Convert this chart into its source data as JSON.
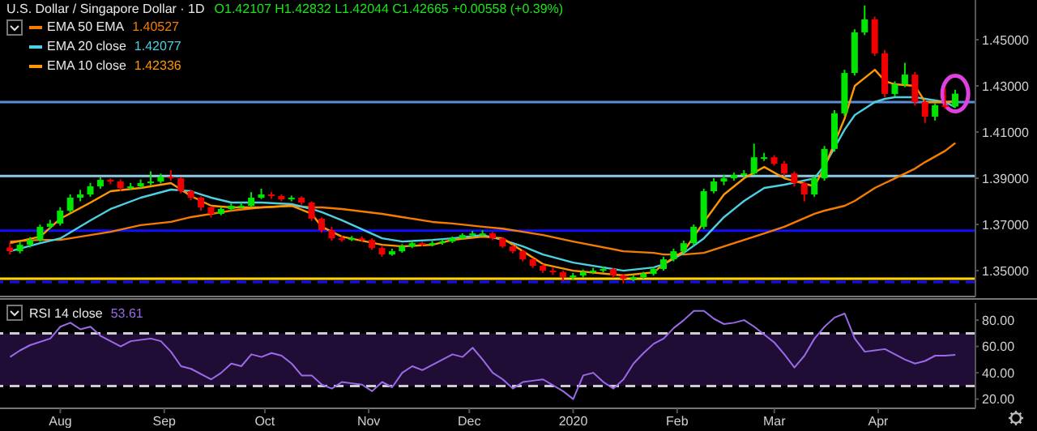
{
  "chart_data": [
    {
      "type": "candlestick",
      "title": "U.S. Dollar / Singapore Dollar · 1D",
      "subtitle": "O1.42107 H1.42832 L1.42044 C1.42665 +0.00558 (+0.39%)",
      "x": [
        "2019-07-17",
        "2019-07-20",
        "2019-07-23",
        "2019-07-26",
        "2019-07-29",
        "2019-08-01",
        "2019-08-04",
        "2019-08-07",
        "2019-08-10",
        "2019-08-13",
        "2019-08-16",
        "2019-08-19",
        "2019-08-22",
        "2019-08-25",
        "2019-08-28",
        "2019-08-31",
        "2019-09-03",
        "2019-09-06",
        "2019-09-09",
        "2019-09-12",
        "2019-09-15",
        "2019-09-18",
        "2019-09-21",
        "2019-09-24",
        "2019-09-27",
        "2019-09-30",
        "2019-10-03",
        "2019-10-06",
        "2019-10-09",
        "2019-10-12",
        "2019-10-15",
        "2019-10-18",
        "2019-10-21",
        "2019-10-24",
        "2019-10-27",
        "2019-10-30",
        "2019-11-02",
        "2019-11-05",
        "2019-11-08",
        "2019-11-11",
        "2019-11-14",
        "2019-11-17",
        "2019-11-20",
        "2019-11-23",
        "2019-11-26",
        "2019-11-29",
        "2019-12-02",
        "2019-12-05",
        "2019-12-08",
        "2019-12-11",
        "2019-12-14",
        "2019-12-17",
        "2019-12-20",
        "2019-12-23",
        "2019-12-26",
        "2019-12-29",
        "2020-01-01",
        "2020-01-04",
        "2020-01-07",
        "2020-01-10",
        "2020-01-13",
        "2020-01-16",
        "2020-01-19",
        "2020-01-22",
        "2020-01-25",
        "2020-01-28",
        "2020-01-31",
        "2020-02-03",
        "2020-02-06",
        "2020-02-09",
        "2020-02-12",
        "2020-02-15",
        "2020-02-18",
        "2020-02-21",
        "2020-02-24",
        "2020-02-27",
        "2020-03-01",
        "2020-03-04",
        "2020-03-07",
        "2020-03-10",
        "2020-03-13",
        "2020-03-16",
        "2020-03-19",
        "2020-03-22",
        "2020-03-25",
        "2020-03-28",
        "2020-03-31",
        "2020-04-03",
        "2020-04-06",
        "2020-04-09",
        "2020-04-12",
        "2020-04-15",
        "2020-04-18",
        "2020-04-21",
        "2020-04-24"
      ],
      "ohlc": [
        [
          1.36,
          1.362,
          1.357,
          1.3584
        ],
        [
          1.3584,
          1.3625,
          1.3575,
          1.3612
        ],
        [
          1.3612,
          1.3645,
          1.36,
          1.3633
        ],
        [
          1.3633,
          1.37,
          1.3625,
          1.369
        ],
        [
          1.369,
          1.372,
          1.368,
          1.3704
        ],
        [
          1.3704,
          1.3775,
          1.3695,
          1.376
        ],
        [
          1.376,
          1.383,
          1.375,
          1.3816
        ],
        [
          1.3816,
          1.385,
          1.38,
          1.383
        ],
        [
          1.383,
          1.388,
          1.382,
          1.3865
        ],
        [
          1.3865,
          1.3905,
          1.3855,
          1.3893
        ],
        [
          1.3893,
          1.39,
          1.3875,
          1.3886
        ],
        [
          1.3886,
          1.3895,
          1.3845,
          1.3858
        ],
        [
          1.3858,
          1.388,
          1.385,
          1.3865
        ],
        [
          1.3865,
          1.3895,
          1.3858,
          1.3879
        ],
        [
          1.3879,
          1.393,
          1.387,
          1.3886
        ],
        [
          1.3886,
          1.392,
          1.3878,
          1.3907
        ],
        [
          1.3907,
          1.3935,
          1.389,
          1.39
        ],
        [
          1.39,
          1.3905,
          1.3835,
          1.3844
        ],
        [
          1.3844,
          1.385,
          1.3805,
          1.3816
        ],
        [
          1.3816,
          1.3822,
          1.376,
          1.3774
        ],
        [
          1.3774,
          1.378,
          1.373,
          1.3746
        ],
        [
          1.3746,
          1.3775,
          1.374,
          1.3767
        ],
        [
          1.3767,
          1.379,
          1.376,
          1.3781
        ],
        [
          1.3781,
          1.3795,
          1.377,
          1.3781
        ],
        [
          1.3781,
          1.384,
          1.3775,
          1.3816
        ],
        [
          1.3816,
          1.3855,
          1.381,
          1.383
        ],
        [
          1.383,
          1.384,
          1.3812,
          1.3823
        ],
        [
          1.3823,
          1.383,
          1.38,
          1.3809
        ],
        [
          1.3809,
          1.3825,
          1.38,
          1.3816
        ],
        [
          1.3816,
          1.3822,
          1.3785,
          1.3795
        ],
        [
          1.3795,
          1.38,
          1.3715,
          1.3725
        ],
        [
          1.3725,
          1.373,
          1.3665,
          1.3675
        ],
        [
          1.3675,
          1.369,
          1.363,
          1.364
        ],
        [
          1.364,
          1.365,
          1.3625,
          1.3633
        ],
        [
          1.3633,
          1.365,
          1.3628,
          1.364
        ],
        [
          1.364,
          1.3648,
          1.3625,
          1.3633
        ],
        [
          1.3633,
          1.364,
          1.359,
          1.3598
        ],
        [
          1.3598,
          1.3605,
          1.356,
          1.357
        ],
        [
          1.357,
          1.3595,
          1.3565,
          1.3584
        ],
        [
          1.3584,
          1.3615,
          1.3578,
          1.3605
        ],
        [
          1.3605,
          1.3628,
          1.3598,
          1.3619
        ],
        [
          1.3619,
          1.3625,
          1.3605,
          1.3612
        ],
        [
          1.3612,
          1.3628,
          1.3605,
          1.3619
        ],
        [
          1.3619,
          1.3635,
          1.3612,
          1.3626
        ],
        [
          1.3626,
          1.3648,
          1.362,
          1.364
        ],
        [
          1.364,
          1.3662,
          1.3635,
          1.3654
        ],
        [
          1.3654,
          1.3672,
          1.3648,
          1.3661
        ],
        [
          1.3661,
          1.3675,
          1.365,
          1.3661
        ],
        [
          1.3661,
          1.3668,
          1.3632,
          1.364
        ],
        [
          1.364,
          1.3645,
          1.3598,
          1.3605
        ],
        [
          1.3605,
          1.3612,
          1.3575,
          1.3584
        ],
        [
          1.3584,
          1.359,
          1.354,
          1.3549
        ],
        [
          1.3549,
          1.3555,
          1.3512,
          1.3521
        ],
        [
          1.3521,
          1.3528,
          1.349,
          1.35
        ],
        [
          1.35,
          1.3512,
          1.3482,
          1.3493
        ],
        [
          1.3493,
          1.35,
          1.3455,
          1.3472
        ],
        [
          1.3472,
          1.349,
          1.3462,
          1.3479
        ],
        [
          1.3479,
          1.3505,
          1.347,
          1.3493
        ],
        [
          1.3493,
          1.3512,
          1.3485,
          1.35
        ],
        [
          1.35,
          1.3518,
          1.3492,
          1.3507
        ],
        [
          1.3507,
          1.3512,
          1.347,
          1.3479
        ],
        [
          1.3479,
          1.3485,
          1.3445,
          1.3465
        ],
        [
          1.3465,
          1.3482,
          1.3455,
          1.3472
        ],
        [
          1.3472,
          1.3495,
          1.3465,
          1.3486
        ],
        [
          1.3486,
          1.3515,
          1.3478,
          1.3507
        ],
        [
          1.3507,
          1.356,
          1.35,
          1.3549
        ],
        [
          1.3549,
          1.3595,
          1.354,
          1.3584
        ],
        [
          1.3584,
          1.363,
          1.3575,
          1.3619
        ],
        [
          1.3619,
          1.37,
          1.361,
          1.369
        ],
        [
          1.369,
          1.3855,
          1.368,
          1.3844
        ],
        [
          1.3844,
          1.39,
          1.3835,
          1.3886
        ],
        [
          1.3886,
          1.3915,
          1.387,
          1.39
        ],
        [
          1.39,
          1.3925,
          1.389,
          1.3914
        ],
        [
          1.3914,
          1.3935,
          1.3905,
          1.3921
        ],
        [
          1.3921,
          1.405,
          1.3915,
          1.3991
        ],
        [
          1.3991,
          1.401,
          1.3975,
          1.3991
        ],
        [
          1.3991,
          1.4,
          1.3955,
          1.3963
        ],
        [
          1.3963,
          1.3975,
          1.391,
          1.3921
        ],
        [
          1.3921,
          1.393,
          1.3865,
          1.3879
        ],
        [
          1.3879,
          1.3885,
          1.38,
          1.383
        ],
        [
          1.383,
          1.391,
          1.382,
          1.39
        ],
        [
          1.39,
          1.404,
          1.389,
          1.4027
        ],
        [
          1.4027,
          1.4195,
          1.4015,
          1.4181
        ],
        [
          1.4181,
          1.437,
          1.417,
          1.4356
        ],
        [
          1.4356,
          1.4545,
          1.4345,
          1.4532
        ],
        [
          1.4532,
          1.4648,
          1.452,
          1.4588
        ],
        [
          1.4588,
          1.46,
          1.443,
          1.4441
        ],
        [
          1.4441,
          1.4455,
          1.425,
          1.4265
        ],
        [
          1.4265,
          1.432,
          1.4255,
          1.4307
        ],
        [
          1.4307,
          1.44,
          1.4295,
          1.4349
        ],
        [
          1.4349,
          1.436,
          1.4215,
          1.423
        ],
        [
          1.423,
          1.424,
          1.414,
          1.4167
        ],
        [
          1.4167,
          1.4225,
          1.415,
          1.4216
        ],
        [
          1.4216,
          1.429,
          1.42,
          1.4211
        ],
        [
          1.42107,
          1.42832,
          1.42044,
          1.42665
        ]
      ],
      "colors": [
        "#f00000",
        "#00e600",
        "#00e600",
        "#00e600",
        "#00e600",
        "#00e600",
        "#00e600",
        "#00e600",
        "#00e600",
        "#00e600",
        "#f00000",
        "#f00000",
        "#00e600",
        "#00e600",
        "#00e600",
        "#00e600",
        "#f00000",
        "#f00000",
        "#f00000",
        "#f00000",
        "#f00000",
        "#00e600",
        "#00e600",
        "#00e600",
        "#00e600",
        "#00e600",
        "#f00000",
        "#f00000",
        "#00e600",
        "#f00000",
        "#f00000",
        "#f00000",
        "#f00000",
        "#f00000",
        "#00e600",
        "#f00000",
        "#f00000",
        "#f00000",
        "#00e600",
        "#00e600",
        "#00e600",
        "#f00000",
        "#00e600",
        "#00e600",
        "#00e600",
        "#00e600",
        "#00e600",
        "#00e600",
        "#f00000",
        "#f00000",
        "#f00000",
        "#f00000",
        "#f00000",
        "#f00000",
        "#f00000",
        "#f00000",
        "#00e600",
        "#00e600",
        "#00e600",
        "#00e600",
        "#f00000",
        "#f00000",
        "#00e600",
        "#00e600",
        "#00e600",
        "#00e600",
        "#00e600",
        "#00e600",
        "#00e600",
        "#00e600",
        "#00e600",
        "#00e600",
        "#00e600",
        "#00e600",
        "#00e600",
        "#00e600",
        "#f00000",
        "#f00000",
        "#f00000",
        "#f00000",
        "#00e600",
        "#00e600",
        "#00e600",
        "#00e600",
        "#00e600",
        "#00e600",
        "#f00000",
        "#f00000",
        "#00e600",
        "#00e600",
        "#f00000",
        "#f00000",
        "#00e600",
        "#f00000",
        "#00e600"
      ],
      "series": [
        {
          "type": "line",
          "name": "EMA 50 EMA",
          "color": "#f57c00",
          "x": [
            "2019-07-17",
            "2019-07-26",
            "2019-08-01",
            "2019-08-10",
            "2019-08-16",
            "2019-08-25",
            "2019-09-03",
            "2019-09-09",
            "2019-09-15",
            "2019-09-21",
            "2019-09-30",
            "2019-10-09",
            "2019-10-15",
            "2019-10-18",
            "2019-10-24",
            "2019-11-05",
            "2019-11-11",
            "2019-11-20",
            "2019-11-26",
            "2019-12-05",
            "2019-12-11",
            "2019-12-17",
            "2019-12-23",
            "2020-01-01",
            "2020-01-16",
            "2020-01-25",
            "2020-01-28",
            "2020-02-03",
            "2020-02-09",
            "2020-02-15",
            "2020-02-21",
            "2020-02-27",
            "2020-03-04",
            "2020-03-13",
            "2020-03-16",
            "2020-03-22",
            "2020-03-25",
            "2020-03-31",
            "2020-04-03",
            "2020-04-06",
            "2020-04-12",
            "2020-04-15",
            "2020-04-21",
            "2020-04-24"
          ],
          "values": [
            1.3626,
            1.3633,
            1.3633,
            1.3654,
            1.3668,
            1.3697,
            1.3711,
            1.3732,
            1.3746,
            1.376,
            1.3774,
            1.3781,
            1.3774,
            1.3774,
            1.3767,
            1.3746,
            1.3732,
            1.3711,
            1.3704,
            1.369,
            1.3682,
            1.3668,
            1.3654,
            1.3626,
            1.3584,
            1.3577,
            1.357,
            1.357,
            1.3577,
            1.3605,
            1.3633,
            1.3661,
            1.369,
            1.3746,
            1.376,
            1.3781,
            1.3802,
            1.3858,
            1.3879,
            1.39,
            1.3942,
            1.397,
            1.4019,
            1.40527
          ]
        },
        {
          "type": "line",
          "name": "EMA 20 close",
          "color": "#4dd0e1",
          "x": [
            "2019-07-17",
            "2019-07-26",
            "2019-08-01",
            "2019-08-10",
            "2019-08-16",
            "2019-08-25",
            "2019-09-03",
            "2019-09-09",
            "2019-09-15",
            "2019-09-21",
            "2019-09-30",
            "2019-10-09",
            "2019-10-15",
            "2019-10-18",
            "2019-10-24",
            "2019-11-05",
            "2019-11-11",
            "2019-11-20",
            "2019-11-26",
            "2019-12-05",
            "2019-12-11",
            "2019-12-17",
            "2019-12-23",
            "2020-01-01",
            "2020-01-16",
            "2020-01-25",
            "2020-01-28",
            "2020-02-03",
            "2020-02-09",
            "2020-02-15",
            "2020-02-21",
            "2020-02-27",
            "2020-03-04",
            "2020-03-13",
            "2020-03-16",
            "2020-03-22",
            "2020-03-25",
            "2020-03-31",
            "2020-04-03",
            "2020-04-06",
            "2020-04-12",
            "2020-04-15",
            "2020-04-21",
            "2020-04-24"
          ],
          "values": [
            1.3584,
            1.3619,
            1.364,
            1.3718,
            1.3767,
            1.3816,
            1.3851,
            1.3844,
            1.3816,
            1.3795,
            1.3795,
            1.3788,
            1.3767,
            1.3753,
            1.3718,
            1.364,
            1.3626,
            1.3633,
            1.364,
            1.3654,
            1.3633,
            1.3605,
            1.357,
            1.3535,
            1.35,
            1.3514,
            1.3528,
            1.3577,
            1.364,
            1.3732,
            1.3802,
            1.3858,
            1.3872,
            1.39,
            1.3956,
            1.4111,
            1.4174,
            1.423,
            1.4244,
            1.4251,
            1.4251,
            1.4244,
            1.423,
            1.42077
          ]
        },
        {
          "type": "line",
          "name": "EMA 10 close",
          "color": "#ff9800",
          "x": [
            "2019-07-17",
            "2019-07-26",
            "2019-08-01",
            "2019-08-10",
            "2019-08-16",
            "2019-08-25",
            "2019-09-03",
            "2019-09-09",
            "2019-09-15",
            "2019-09-21",
            "2019-09-30",
            "2019-10-09",
            "2019-10-15",
            "2019-10-18",
            "2019-10-24",
            "2019-11-05",
            "2019-11-11",
            "2019-11-20",
            "2019-11-26",
            "2019-12-05",
            "2019-12-11",
            "2019-12-17",
            "2019-12-23",
            "2020-01-01",
            "2020-01-16",
            "2020-01-25",
            "2020-01-28",
            "2020-02-03",
            "2020-02-09",
            "2020-02-15",
            "2020-02-21",
            "2020-02-27",
            "2020-03-04",
            "2020-03-13",
            "2020-03-16",
            "2020-03-22",
            "2020-03-25",
            "2020-03-31",
            "2020-04-03",
            "2020-04-06",
            "2020-04-12",
            "2020-04-15",
            "2020-04-21",
            "2020-04-24"
          ],
          "values": [
            1.3619,
            1.3647,
            1.3725,
            1.3795,
            1.3844,
            1.3858,
            1.3879,
            1.3823,
            1.3781,
            1.3774,
            1.3774,
            1.3781,
            1.3746,
            1.369,
            1.3647,
            1.3612,
            1.3605,
            1.3612,
            1.3633,
            1.3647,
            1.364,
            1.3584,
            1.3528,
            1.35,
            1.3479,
            1.3493,
            1.3528,
            1.3584,
            1.3711,
            1.383,
            1.39,
            1.3949,
            1.39,
            1.3865,
            1.3949,
            1.416,
            1.43,
            1.437,
            1.4321,
            1.4307,
            1.43,
            1.423,
            1.423,
            1.42336
          ]
        }
      ],
      "annotations": [
        "1.40527",
        "1.42077",
        "1.42336"
      ],
      "xlim": [
        "2019-07-14",
        "2020-04-30"
      ],
      "ylim": [
        1.3388,
        1.4672
      ],
      "yticks": [
        {
          "value": 1.35,
          "label": "1.35000"
        },
        {
          "value": 1.37,
          "label": "1.37000"
        },
        {
          "value": 1.39,
          "label": "1.39000"
        },
        {
          "value": 1.41,
          "label": "1.41000"
        },
        {
          "value": 1.43,
          "label": "1.43000"
        },
        {
          "value": 1.45,
          "label": "1.45000"
        }
      ],
      "ref_lines": [
        {
          "axis": "y",
          "value": 1.423,
          "color": "#5b8fd9",
          "line_style": "solid"
        },
        {
          "axis": "y",
          "value": 1.391,
          "color": "#8ecae6",
          "line_style": "solid"
        },
        {
          "axis": "y",
          "value": 1.3673,
          "color": "#1010ff",
          "line_style": "solid"
        },
        {
          "axis": "y",
          "value": 1.3465,
          "color": "#ffd400",
          "line_style": "solid"
        },
        {
          "axis": "y",
          "value": 1.3451,
          "color": "#1010ff",
          "line_style": "dashed"
        }
      ],
      "legend": "top left",
      "tick_labels": "y"
    },
    {
      "type": "line",
      "series": [
        {
          "name": "RSI 14 close",
          "color": "#9b6ae8",
          "x": [
            "2019-07-17",
            "2019-07-20",
            "2019-07-23",
            "2019-07-29",
            "2019-08-01",
            "2019-08-04",
            "2019-08-07",
            "2019-08-10",
            "2019-08-13",
            "2019-08-16",
            "2019-08-19",
            "2019-08-22",
            "2019-08-28",
            "2019-08-31",
            "2019-09-03",
            "2019-09-06",
            "2019-09-09",
            "2019-09-15",
            "2019-09-18",
            "2019-09-21",
            "2019-09-24",
            "2019-09-27",
            "2019-09-30",
            "2019-10-03",
            "2019-10-06",
            "2019-10-09",
            "2019-10-12",
            "2019-10-15",
            "2019-10-18",
            "2019-10-21",
            "2019-10-24",
            "2019-10-27",
            "2019-10-30",
            "2019-11-02",
            "2019-11-05",
            "2019-11-08",
            "2019-11-11",
            "2019-11-14",
            "2019-11-17",
            "2019-11-23",
            "2019-11-26",
            "2019-11-29",
            "2019-12-02",
            "2019-12-05",
            "2019-12-08",
            "2019-12-11",
            "2019-12-14",
            "2019-12-17",
            "2019-12-20",
            "2019-12-23",
            "2019-12-29",
            "2020-01-01",
            "2020-01-04",
            "2020-01-07",
            "2020-01-10",
            "2020-01-13",
            "2020-01-16",
            "2020-01-19",
            "2020-01-22",
            "2020-01-25",
            "2020-01-28",
            "2020-01-31",
            "2020-02-03",
            "2020-02-06",
            "2020-02-09",
            "2020-02-12",
            "2020-02-15",
            "2020-02-18",
            "2020-02-21",
            "2020-02-24",
            "2020-02-27",
            "2020-03-01",
            "2020-03-04",
            "2020-03-07",
            "2020-03-10",
            "2020-03-13",
            "2020-03-16",
            "2020-03-19",
            "2020-03-22",
            "2020-03-25",
            "2020-03-28",
            "2020-03-31",
            "2020-04-03",
            "2020-04-06",
            "2020-04-09",
            "2020-04-12",
            "2020-04-15",
            "2020-04-18",
            "2020-04-21",
            "2020-04-24"
          ],
          "values": [
            52,
            57,
            61,
            66,
            75,
            78,
            73,
            75,
            68,
            64,
            60,
            64,
            66,
            64,
            56,
            45,
            43,
            35,
            40,
            47,
            45,
            54,
            52,
            55,
            53,
            47,
            38,
            38,
            31,
            28,
            33,
            32,
            31,
            26,
            33,
            29,
            40,
            45,
            42,
            50,
            54,
            52,
            59,
            50,
            40,
            35,
            28,
            33,
            34,
            35,
            26,
            20,
            38,
            40,
            33,
            28,
            35,
            47,
            55,
            62,
            66,
            74,
            80,
            87,
            87,
            81,
            77,
            78,
            80,
            75,
            69,
            63,
            54,
            44,
            53,
            66,
            75,
            82,
            85,
            66,
            56,
            57,
            58,
            54,
            50,
            47,
            49,
            53,
            53,
            53.61
          ]
        }
      ],
      "annotations": [
        "53.61"
      ],
      "xlim": [
        "2019-07-14",
        "2020-04-30"
      ],
      "xticks": [
        {
          "value": "2019-08-01",
          "label": "Aug"
        },
        {
          "value": "2019-09-01",
          "label": "Sep"
        },
        {
          "value": "2019-10-01",
          "label": "Oct"
        },
        {
          "value": "2019-11-01",
          "label": "Nov"
        },
        {
          "value": "2019-12-01",
          "label": "Dec"
        },
        {
          "value": "2020-01-01",
          "label": "2020"
        },
        {
          "value": "2020-02-01",
          "label": "Feb"
        },
        {
          "value": "2020-03-01",
          "label": "Mar"
        },
        {
          "value": "2020-04-01",
          "label": "Apr"
        }
      ],
      "ylim": [
        13,
        93
      ],
      "yticks": [
        {
          "value": 20,
          "label": "20.00"
        },
        {
          "value": 40,
          "label": "40.00"
        },
        {
          "value": 60,
          "label": "60.00"
        },
        {
          "value": 80,
          "label": "80.00"
        }
      ],
      "bands": [
        {
          "axis": "y",
          "from": 30,
          "to": 70,
          "color": "#1f0d36"
        }
      ],
      "ref_lines": [
        {
          "axis": "y",
          "value": 70,
          "color": "#cccccc",
          "line_style": "dashed"
        },
        {
          "axis": "y",
          "value": 30,
          "color": "#cccccc",
          "line_style": "dashed"
        }
      ],
      "legend": "top left"
    }
  ]
}
